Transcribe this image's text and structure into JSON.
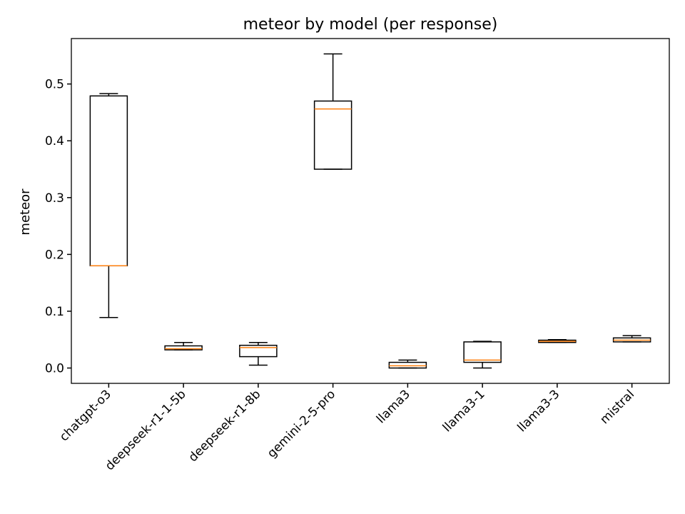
{
  "chart_data": {
    "type": "boxplot",
    "title": "meteor by model (per response)",
    "xlabel": "",
    "ylabel": "meteor",
    "ylim": [
      -0.027,
      0.58
    ],
    "yticks": [
      0.0,
      0.1,
      0.2,
      0.3,
      0.4,
      0.5
    ],
    "ytick_labels": [
      "0.0",
      "0.1",
      "0.2",
      "0.3",
      "0.4",
      "0.5"
    ],
    "grid": false,
    "legend": "none",
    "colors": {
      "box": "#000000",
      "median": "#ff7f0e",
      "whisker": "#000000"
    },
    "categories": [
      "chatgpt-o3",
      "deepseek-r1-1-5b",
      "deepseek-r1-8b",
      "gemini-2-5-pro",
      "llama3",
      "llama3-1",
      "llama3-3",
      "mistral"
    ],
    "boxes": [
      {
        "whisker_low": 0.089,
        "q1": 0.18,
        "median": 0.18,
        "q3": 0.479,
        "whisker_high": 0.483
      },
      {
        "whisker_low": 0.032,
        "q1": 0.032,
        "median": 0.034,
        "q3": 0.039,
        "whisker_high": 0.045
      },
      {
        "whisker_low": 0.005,
        "q1": 0.02,
        "median": 0.036,
        "q3": 0.04,
        "whisker_high": 0.045
      },
      {
        "whisker_low": 0.35,
        "q1": 0.35,
        "median": 0.456,
        "q3": 0.47,
        "whisker_high": 0.553
      },
      {
        "whisker_low": 0.0,
        "q1": 0.0,
        "median": 0.004,
        "q3": 0.01,
        "whisker_high": 0.014
      },
      {
        "whisker_low": 0.0,
        "q1": 0.01,
        "median": 0.014,
        "q3": 0.046,
        "whisker_high": 0.047
      },
      {
        "whisker_low": 0.045,
        "q1": 0.045,
        "median": 0.047,
        "q3": 0.049,
        "whisker_high": 0.05
      },
      {
        "whisker_low": 0.046,
        "q1": 0.046,
        "median": 0.049,
        "q3": 0.053,
        "whisker_high": 0.057
      }
    ]
  }
}
